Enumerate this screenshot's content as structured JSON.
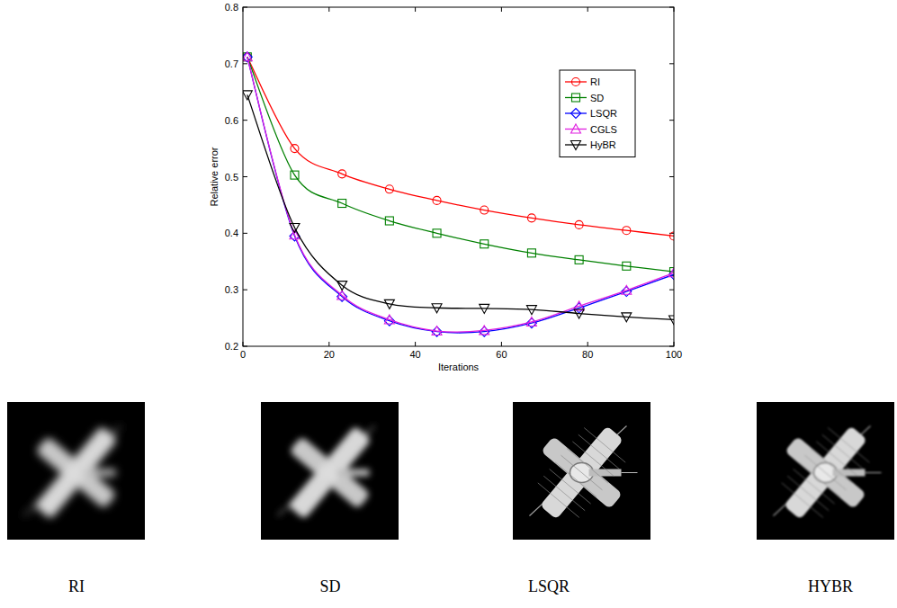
{
  "chart_data": {
    "type": "line",
    "x_label": "Iterations",
    "y_label": "Relative error",
    "x": [
      1,
      12,
      23,
      34,
      45,
      56,
      67,
      78,
      89,
      100
    ],
    "xlim": [
      0,
      100
    ],
    "ylim": [
      0.2,
      0.8
    ],
    "xticks": [
      0,
      20,
      40,
      60,
      80,
      100
    ],
    "yticks": [
      0.2,
      0.3,
      0.4,
      0.5,
      0.6,
      0.7,
      0.8
    ],
    "legend": "upper right",
    "series": [
      {
        "name": "RI",
        "color": "#ff0000",
        "marker": "circle",
        "values": [
          0.712,
          0.55,
          0.505,
          0.478,
          0.458,
          0.441,
          0.427,
          0.415,
          0.405,
          0.395
        ]
      },
      {
        "name": "SD",
        "color": "#008000",
        "marker": "square",
        "values": [
          0.712,
          0.503,
          0.453,
          0.422,
          0.4,
          0.381,
          0.365,
          0.353,
          0.342,
          0.332
        ]
      },
      {
        "name": "LSQR",
        "color": "#0000ff",
        "marker": "diamond",
        "values": [
          0.712,
          0.395,
          0.288,
          0.245,
          0.226,
          0.226,
          0.241,
          0.268,
          0.297,
          0.327
        ]
      },
      {
        "name": "CGLS",
        "color": "#e020e0",
        "marker": "triangle-up",
        "values": [
          0.712,
          0.397,
          0.29,
          0.247,
          0.227,
          0.228,
          0.243,
          0.271,
          0.299,
          0.33
        ]
      },
      {
        "name": "HyBR",
        "color": "#000000",
        "marker": "triangle-down",
        "values": [
          0.645,
          0.41,
          0.308,
          0.275,
          0.268,
          0.267,
          0.265,
          0.258,
          0.252,
          0.247
        ]
      }
    ]
  },
  "images": [
    {
      "caption": "RI"
    },
    {
      "caption": "SD"
    },
    {
      "caption": "LSQR"
    },
    {
      "caption": "HYBR"
    }
  ]
}
